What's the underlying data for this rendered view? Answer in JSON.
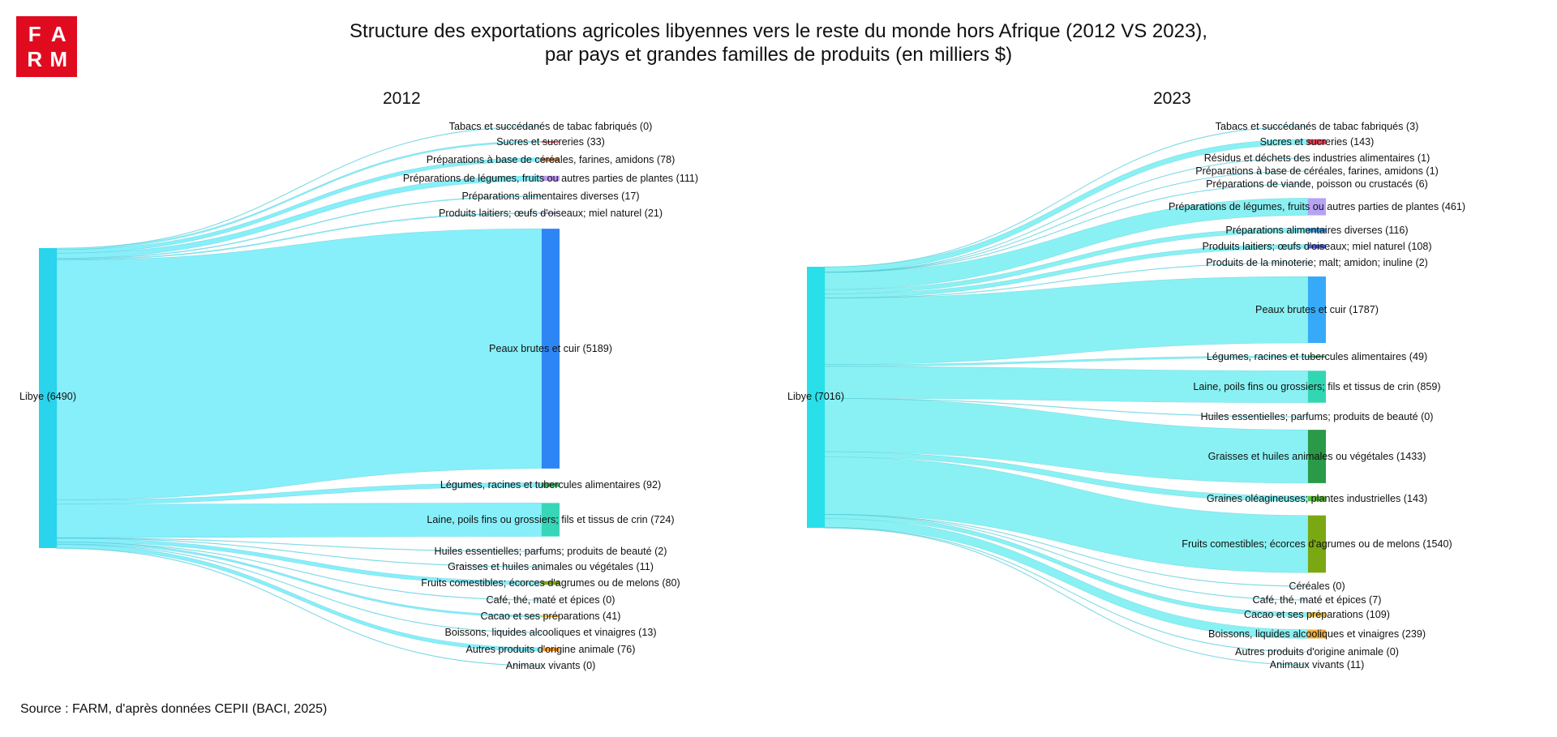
{
  "logo": {
    "letters": [
      "F",
      "A",
      "R",
      "M"
    ],
    "color": "#e10b1f"
  },
  "header": {
    "title_line1": "Structure des exportations agricoles libyennes vers le reste du monde hors Afrique (2012 VS 2023),",
    "title_line2": "par pays et grandes familles de produits (en milliers $)"
  },
  "footer": {
    "source": "Source : FARM, d'après données CEPII (BACI, 2025)"
  },
  "chart_data": [
    {
      "type": "sankey",
      "title": "2012",
      "source": {
        "name": "Libye",
        "value": 6490,
        "color": "#29d4ec"
      },
      "link_color": "#7deef8",
      "targets": [
        {
          "name": "Tabacs et succédanés de tabac fabriqués",
          "value": 0,
          "color": "#999999"
        },
        {
          "name": "Sucres et sucreries",
          "value": 33,
          "color": "#e64a5a"
        },
        {
          "name": "Préparations à base de céréales, farines, amidons",
          "value": 78,
          "color": "#c48b5a"
        },
        {
          "name": "Préparations de légumes, fruits ou autres parties de plantes",
          "value": 111,
          "color": "#b99af0"
        },
        {
          "name": "Préparations alimentaires diverses",
          "value": 17,
          "color": "#4aa0e0"
        },
        {
          "name": "Produits laitiers; œufs d'oiseaux; miel naturel",
          "value": 21,
          "color": "#5b63e6"
        },
        {
          "name": "Peaux brutes et cuir",
          "value": 5189,
          "color": "#2e86f5"
        },
        {
          "name": "Légumes, racines et tubercules alimentaires",
          "value": 92,
          "color": "#3fb86a"
        },
        {
          "name": "Laine, poils fins ou grossiers; fils et tissus de crin",
          "value": 724,
          "color": "#37d6b8"
        },
        {
          "name": "Huiles essentielles; parfums; produits de beauté",
          "value": 2,
          "color": "#8fb0c8"
        },
        {
          "name": "Graisses et huiles animales ou végétales",
          "value": 11,
          "color": "#2e9e4a"
        },
        {
          "name": "Fruits comestibles; écorces d'agrumes ou de melons",
          "value": 80,
          "color": "#7fa61a"
        },
        {
          "name": "Café, thé, maté et épices",
          "value": 0,
          "color": "#aaaaaa"
        },
        {
          "name": "Cacao et ses préparations",
          "value": 41,
          "color": "#f0b82a"
        },
        {
          "name": "Boissons, liquides alcooliques et vinaigres",
          "value": 13,
          "color": "#f0a83a"
        },
        {
          "name": "Autres produits d'origine animale",
          "value": 76,
          "color": "#f39a2e"
        },
        {
          "name": "Animaux vivants",
          "value": 0,
          "color": "#c05050"
        }
      ]
    },
    {
      "type": "sankey",
      "title": "2023",
      "source": {
        "name": "Libye",
        "value": 7016,
        "color": "#29e0ea"
      },
      "link_color": "#7ff0f2",
      "targets": [
        {
          "name": "Tabacs et succédanés de tabac fabriqués",
          "value": 3,
          "color": "#999999"
        },
        {
          "name": "Sucres et sucreries",
          "value": 143,
          "color": "#ef3f55"
        },
        {
          "name": "Résidus et déchets des industries alimentaires",
          "value": 1,
          "color": "#c88a6a"
        },
        {
          "name": "Préparations à base de céréales, farines, amidons",
          "value": 1,
          "color": "#c48b5a"
        },
        {
          "name": "Préparations de viande, poisson ou crustacés",
          "value": 6,
          "color": "#e08870"
        },
        {
          "name": "Préparations de légumes, fruits ou autres parties de plantes",
          "value": 461,
          "color": "#b8a2f5"
        },
        {
          "name": "Préparations alimentaires diverses",
          "value": 116,
          "color": "#3aa0e8"
        },
        {
          "name": "Produits laitiers; œufs d'oiseaux; miel naturel",
          "value": 108,
          "color": "#4a5ee8"
        },
        {
          "name": "Produits de la minoterie; malt; amidon; inuline",
          "value": 2,
          "color": "#8a8ac0"
        },
        {
          "name": "Peaux brutes et cuir",
          "value": 1787,
          "color": "#36aaf8"
        },
        {
          "name": "Légumes, racines et tubercules alimentaires",
          "value": 49,
          "color": "#3fb86a"
        },
        {
          "name": "Laine, poils fins ou grossiers; fils et tissus de crin",
          "value": 859,
          "color": "#33d6b2"
        },
        {
          "name": "Huiles essentielles; parfums; produits de beauté",
          "value": 0,
          "color": "#8fb0c8"
        },
        {
          "name": "Graisses et huiles animales ou végétales",
          "value": 1433,
          "color": "#2a9a48"
        },
        {
          "name": "Graines oléagineuses; plantes industrielles",
          "value": 143,
          "color": "#5cbf3a"
        },
        {
          "name": "Fruits comestibles; écorces d'agrumes ou de melons",
          "value": 1540,
          "color": "#7aa812"
        },
        {
          "name": "Céréales",
          "value": 0,
          "color": "#c8b040"
        },
        {
          "name": "Café, thé, maté et épices",
          "value": 7,
          "color": "#a88a50"
        },
        {
          "name": "Cacao et ses préparations",
          "value": 109,
          "color": "#f0be2a"
        },
        {
          "name": "Boissons, liquides alcooliques et vinaigres",
          "value": 239,
          "color": "#f0ac3a"
        },
        {
          "name": "Autres produits d'origine animale",
          "value": 0,
          "color": "#f39a2e"
        },
        {
          "name": "Animaux vivants",
          "value": 11,
          "color": "#c05050"
        }
      ]
    }
  ]
}
